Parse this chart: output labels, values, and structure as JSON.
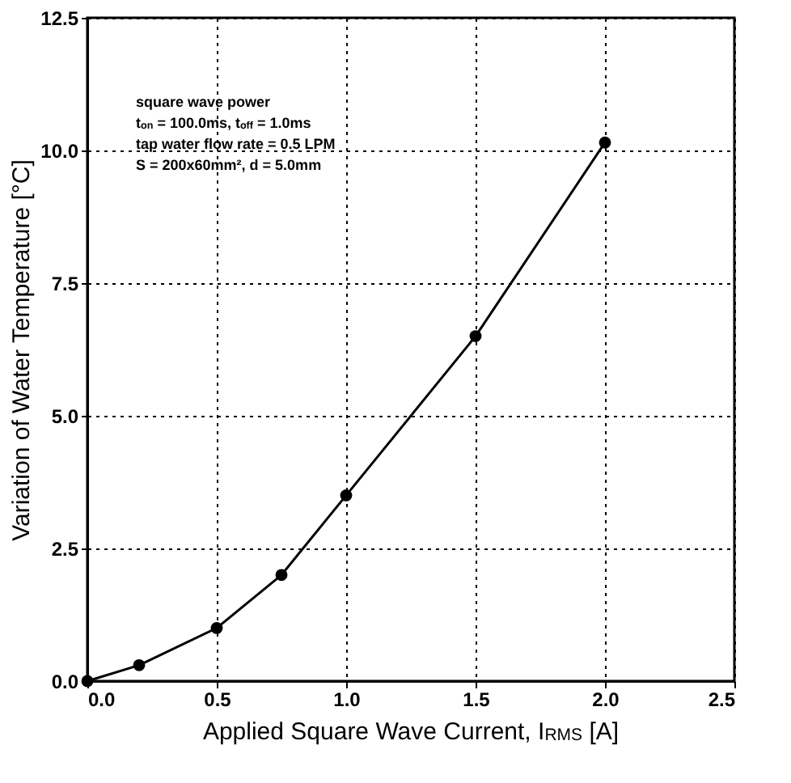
{
  "chart_data": {
    "type": "line",
    "xlabel": "Applied Square Wave Current, I$_{RMS}$ [A]",
    "ylabel": "Variation of Water Temperature  [°C]",
    "x": [
      0.0,
      0.2,
      0.5,
      0.75,
      1.0,
      1.5,
      2.0
    ],
    "series": [
      {
        "color": "#000000",
        "values": [
          0.0,
          0.3,
          1.0,
          2.0,
          3.5,
          6.5,
          10.15
        ]
      }
    ],
    "xlim": [
      0,
      2.5
    ],
    "xticks": [
      {
        "value": 0,
        "label": "0.0"
      },
      0.5,
      {
        "value": 1,
        "label": "1.0"
      },
      1.5,
      {
        "value": 2,
        "label": "2.0"
      },
      2.5
    ],
    "ylim": [
      0,
      12.5
    ],
    "yticks": [
      {
        "value": 0,
        "label": "0.0"
      },
      2.5,
      {
        "value": 5,
        "label": "5.0"
      },
      7.5,
      {
        "value": 10,
        "label": "10.0"
      },
      12.5
    ],
    "grid": true,
    "marker": "circle",
    "line_style": "solid",
    "annotations": [
      "square wave power",
      "t$_{on}$ = 100.0ms, t$_{off}$ = 1.0ms",
      "tap water flow rate = 0.5 LPM",
      "S = 200x60mm², d = 5.0mm"
    ]
  }
}
